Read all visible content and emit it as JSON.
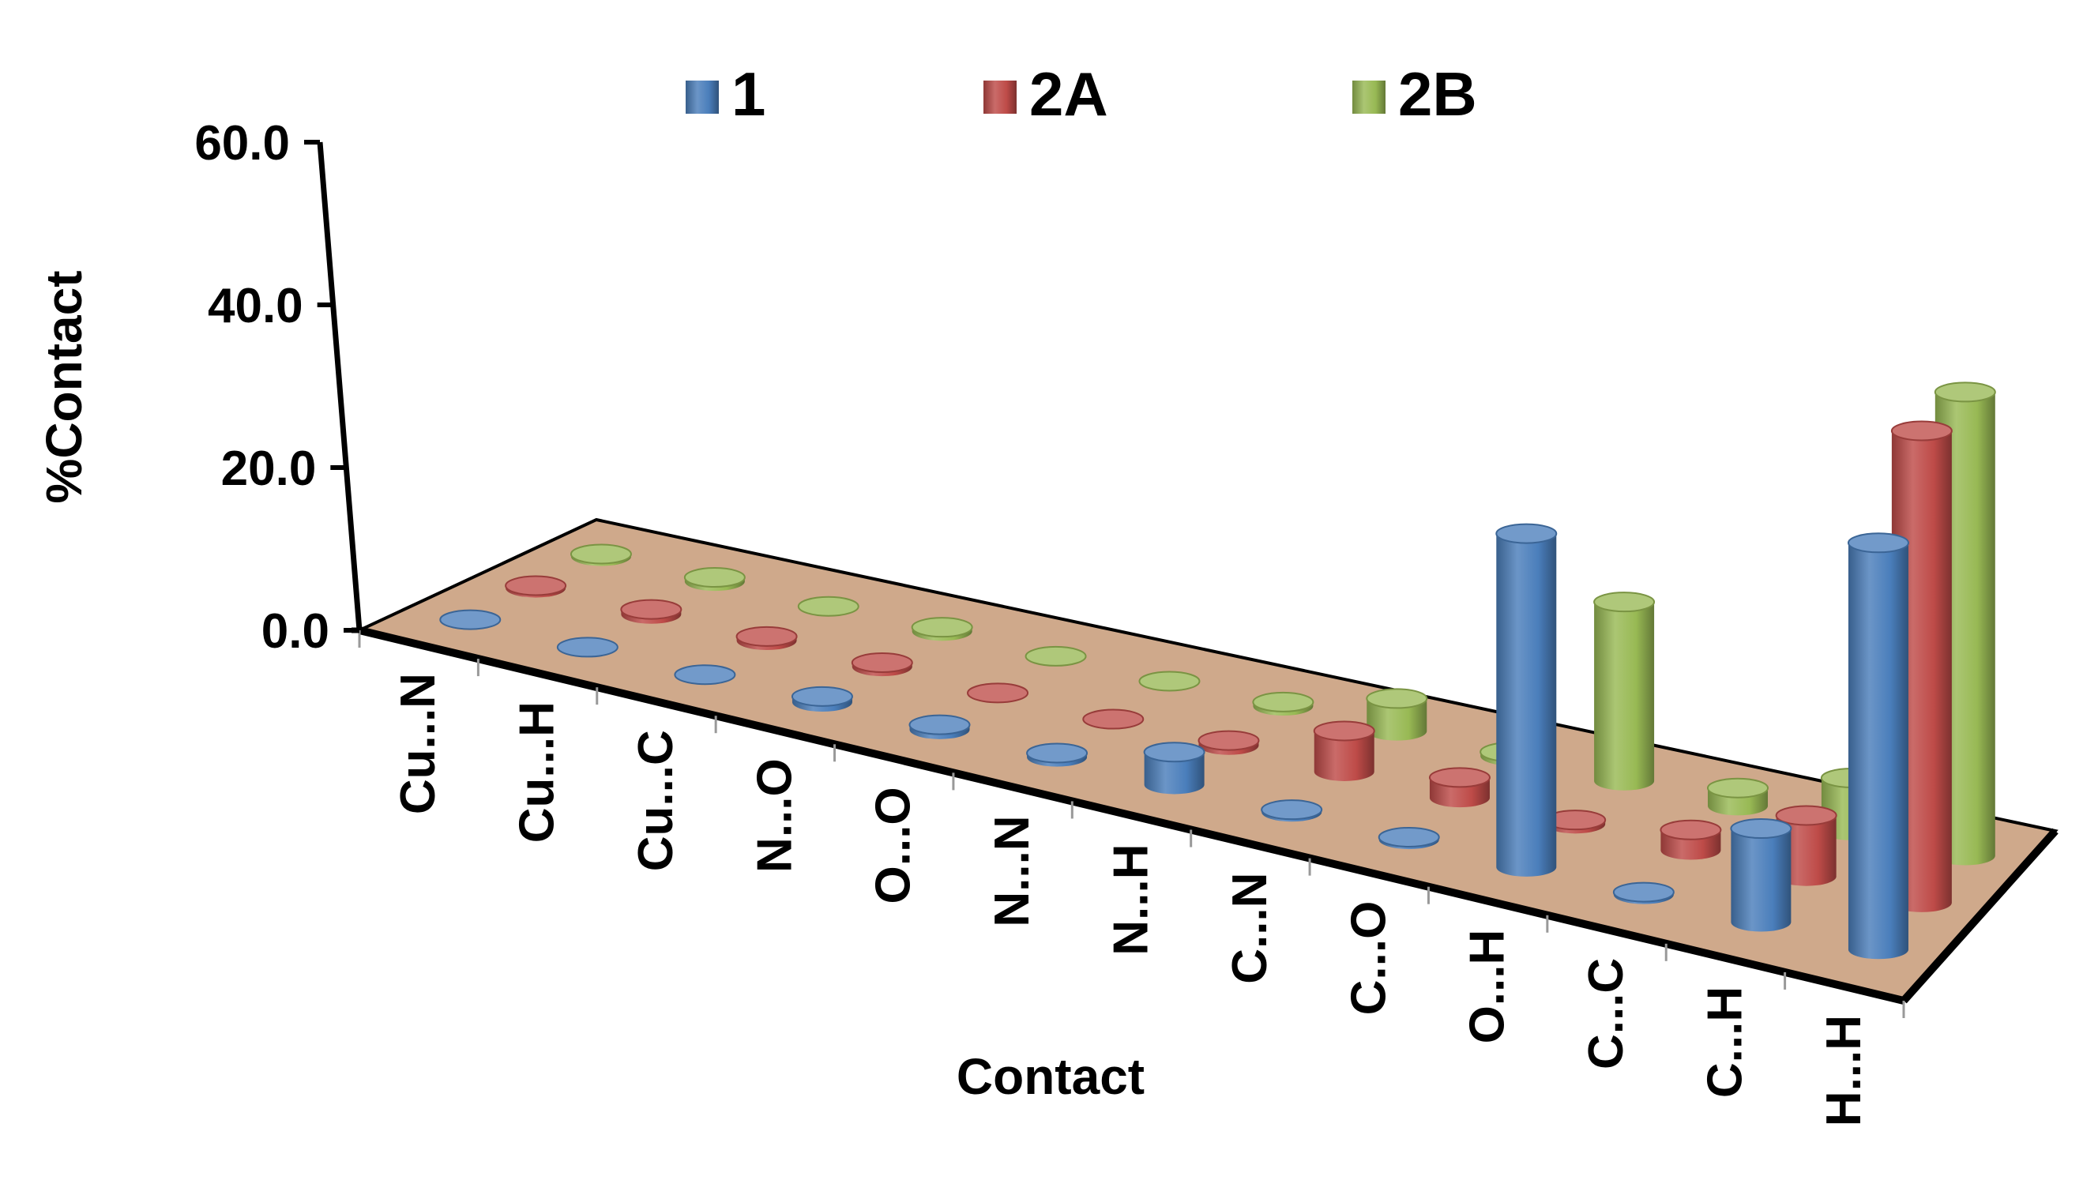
{
  "chart_data": {
    "type": "bar",
    "subtype": "3d-cylinder",
    "title": "",
    "xlabel": "Contact",
    "ylabel": "%Contact",
    "ylim": [
      0,
      60
    ],
    "yticks": [
      "0.0",
      "20.0",
      "40.0",
      "60.0"
    ],
    "legend_position": "top",
    "floor_color": "#cfa98b",
    "categories": [
      "Cu...N",
      "Cu...H",
      "Cu...C",
      "N...O",
      "O...O",
      "N...N",
      "N...H",
      "C...N",
      "C...O",
      "O...H",
      "C...C",
      "C...H",
      "H...H"
    ],
    "series": [
      {
        "name": "1",
        "color": "#4a7ebb",
        "values": [
          0.0,
          0.0,
          0.0,
          0.7,
          0.6,
          0.5,
          4.0,
          0.3,
          0.3,
          41.0,
          0.3,
          11.5,
          50.0
        ]
      },
      {
        "name": "2A",
        "color": "#be4b48",
        "values": [
          0.3,
          0.6,
          0.5,
          0.5,
          0.0,
          0.0,
          0.6,
          5.0,
          2.5,
          0.5,
          2.5,
          7.5,
          58.0
        ]
      },
      {
        "name": "2B",
        "color": "#98b954",
        "values": [
          0.3,
          0.5,
          0.0,
          0.5,
          0.0,
          0.0,
          0.5,
          4.0,
          0.5,
          22.0,
          2.2,
          6.5,
          57.0
        ]
      }
    ]
  }
}
